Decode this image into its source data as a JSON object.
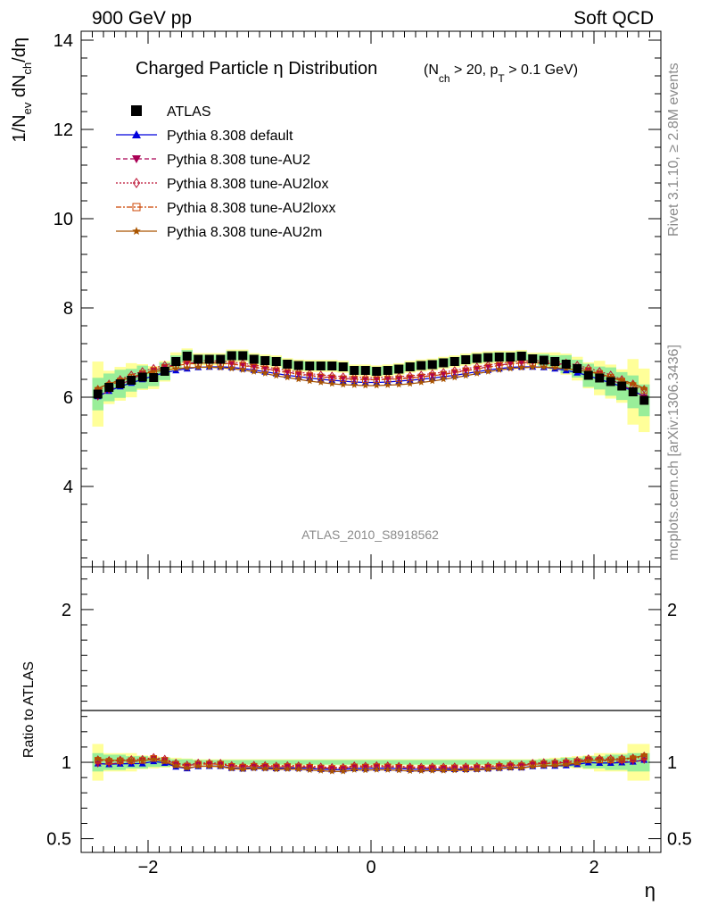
{
  "header": {
    "left": "900 GeV pp",
    "right": "Soft QCD"
  },
  "side_text": {
    "top": "Rivet 3.1.10, ≥ 2.8M events",
    "bottom": "mcplots.cern.ch [arXiv:1306.3436]"
  },
  "title": {
    "main": "Charged Particle η Distribution",
    "sub": "(N_ch > 20, p_T > 0.1 GeV)"
  },
  "watermark": "ATLAS_2010_S8918562",
  "chart_data": {
    "type": "scatter",
    "title": "Charged Particle η Distribution",
    "xlabel": "η",
    "upper": {
      "ylabel": "1/N_ev dN_ch/dη",
      "ylim": [
        2.2,
        14.2
      ],
      "yticks": [
        "4",
        "6",
        "8",
        "10",
        "12",
        "14"
      ]
    },
    "ratio": {
      "ylabel": "Ratio to ATLAS",
      "ylim": [
        0.41,
        2.28
      ],
      "yticks": [
        "0.5",
        "1",
        "2"
      ]
    },
    "xlim": [
      -2.6,
      2.6
    ],
    "xticks": [
      "−2",
      "0",
      "2"
    ],
    "x": [
      -2.45,
      -2.35,
      -2.25,
      -2.15,
      -2.05,
      -1.95,
      -1.85,
      -1.75,
      -1.65,
      -1.55,
      -1.45,
      -1.35,
      -1.25,
      -1.15,
      -1.05,
      -0.95,
      -0.85,
      -0.75,
      -0.65,
      -0.55,
      -0.45,
      -0.35,
      -0.25,
      -0.15,
      -0.05,
      0.05,
      0.15,
      0.25,
      0.35,
      0.45,
      0.55,
      0.65,
      0.75,
      0.85,
      0.95,
      1.05,
      1.15,
      1.25,
      1.35,
      1.45,
      1.55,
      1.65,
      1.75,
      1.85,
      1.95,
      2.05,
      2.15,
      2.25,
      2.35,
      2.45
    ],
    "data": {
      "name": "ATLAS",
      "values": [
        6.07,
        6.22,
        6.3,
        6.38,
        6.45,
        6.44,
        6.58,
        6.8,
        6.92,
        6.85,
        6.85,
        6.85,
        6.93,
        6.93,
        6.85,
        6.82,
        6.8,
        6.74,
        6.71,
        6.7,
        6.7,
        6.7,
        6.68,
        6.6,
        6.6,
        6.58,
        6.6,
        6.63,
        6.68,
        6.71,
        6.73,
        6.77,
        6.8,
        6.84,
        6.87,
        6.89,
        6.9,
        6.9,
        6.92,
        6.86,
        6.83,
        6.8,
        6.74,
        6.64,
        6.49,
        6.43,
        6.35,
        6.25,
        6.12,
        5.93
      ],
      "band_inner": [
        0.06,
        0.05,
        0.05,
        0.04,
        0.04,
        0.03,
        0.03,
        0.02,
        0.02,
        0.015,
        0.015,
        0.015,
        0.015,
        0.015,
        0.015,
        0.015,
        0.015,
        0.015,
        0.015,
        0.015,
        0.015,
        0.015,
        0.015,
        0.015,
        0.015,
        0.015,
        0.015,
        0.015,
        0.015,
        0.015,
        0.015,
        0.015,
        0.015,
        0.015,
        0.015,
        0.015,
        0.015,
        0.015,
        0.015,
        0.015,
        0.02,
        0.02,
        0.03,
        0.03,
        0.04,
        0.04,
        0.05,
        0.05,
        0.06,
        0.06
      ],
      "band_outer": [
        0.12,
        0.06,
        0.06,
        0.06,
        0.045,
        0.04,
        0.035,
        0.03,
        0.025,
        0.02,
        0.02,
        0.02,
        0.02,
        0.02,
        0.02,
        0.02,
        0.02,
        0.02,
        0.02,
        0.02,
        0.02,
        0.02,
        0.02,
        0.02,
        0.02,
        0.02,
        0.02,
        0.02,
        0.02,
        0.02,
        0.02,
        0.02,
        0.02,
        0.02,
        0.02,
        0.02,
        0.02,
        0.02,
        0.02,
        0.02,
        0.025,
        0.03,
        0.035,
        0.04,
        0.045,
        0.06,
        0.06,
        0.06,
        0.12,
        0.12
      ]
    },
    "series": [
      {
        "name": "Pythia 8.308 default",
        "color": "#0000dd",
        "marker": "triangle-up",
        "dash": "solid",
        "values": [
          6.02,
          6.14,
          6.24,
          6.32,
          6.4,
          6.48,
          6.55,
          6.6,
          6.64,
          6.67,
          6.68,
          6.68,
          6.67,
          6.64,
          6.61,
          6.57,
          6.53,
          6.49,
          6.46,
          6.43,
          6.4,
          6.38,
          6.36,
          6.34,
          6.33,
          6.33,
          6.34,
          6.36,
          6.38,
          6.4,
          6.43,
          6.46,
          6.49,
          6.53,
          6.57,
          6.61,
          6.64,
          6.67,
          6.68,
          6.68,
          6.67,
          6.64,
          6.6,
          6.55,
          6.48,
          6.4,
          6.32,
          6.24,
          6.14,
          6.02
        ]
      },
      {
        "name": "Pythia 8.308 tune-AU2",
        "color": "#aa0055",
        "marker": "triangle-down",
        "dash": "dashed",
        "values": [
          6.0,
          6.15,
          6.28,
          6.4,
          6.52,
          6.6,
          6.68,
          6.73,
          6.76,
          6.78,
          6.78,
          6.77,
          6.75,
          6.72,
          6.68,
          6.64,
          6.6,
          6.56,
          6.52,
          6.49,
          6.46,
          6.44,
          6.42,
          6.41,
          6.4,
          6.4,
          6.41,
          6.42,
          6.44,
          6.46,
          6.49,
          6.52,
          6.56,
          6.6,
          6.64,
          6.68,
          6.72,
          6.75,
          6.77,
          6.78,
          6.78,
          6.76,
          6.73,
          6.68,
          6.6,
          6.52,
          6.4,
          6.28,
          6.15,
          6.0
        ]
      },
      {
        "name": "Pythia 8.308 tune-AU2lox",
        "color": "#bb1133",
        "marker": "diamond-open",
        "dash": "dotted",
        "values": [
          6.18,
          6.3,
          6.4,
          6.5,
          6.58,
          6.65,
          6.72,
          6.77,
          6.8,
          6.82,
          6.82,
          6.81,
          6.79,
          6.76,
          6.72,
          6.68,
          6.64,
          6.6,
          6.56,
          6.53,
          6.5,
          6.48,
          6.46,
          6.45,
          6.44,
          6.44,
          6.45,
          6.46,
          6.48,
          6.5,
          6.53,
          6.56,
          6.6,
          6.64,
          6.68,
          6.72,
          6.76,
          6.79,
          6.81,
          6.82,
          6.82,
          6.8,
          6.77,
          6.72,
          6.65,
          6.58,
          6.5,
          6.4,
          6.3,
          6.18
        ]
      },
      {
        "name": "Pythia 8.308 tune-AU2loxx",
        "color": "#cc4400",
        "marker": "square-open",
        "dash": "dashdot",
        "values": [
          6.15,
          6.26,
          6.36,
          6.45,
          6.53,
          6.6,
          6.66,
          6.71,
          6.74,
          6.76,
          6.77,
          6.76,
          6.74,
          6.71,
          6.67,
          6.63,
          6.59,
          6.55,
          6.51,
          6.48,
          6.45,
          6.43,
          6.41,
          6.4,
          6.39,
          6.39,
          6.4,
          6.41,
          6.43,
          6.45,
          6.48,
          6.51,
          6.55,
          6.59,
          6.63,
          6.67,
          6.71,
          6.74,
          6.76,
          6.77,
          6.76,
          6.74,
          6.71,
          6.66,
          6.6,
          6.53,
          6.45,
          6.36,
          6.26,
          6.15
        ]
      },
      {
        "name": "Pythia 8.308 tune-AU2m",
        "color": "#aa5500",
        "marker": "star",
        "dash": "solid",
        "values": [
          6.2,
          6.3,
          6.38,
          6.45,
          6.52,
          6.57,
          6.61,
          6.64,
          6.66,
          6.67,
          6.67,
          6.66,
          6.64,
          6.61,
          6.57,
          6.53,
          6.48,
          6.44,
          6.4,
          6.36,
          6.33,
          6.3,
          6.28,
          6.27,
          6.26,
          6.26,
          6.27,
          6.28,
          6.3,
          6.33,
          6.36,
          6.4,
          6.44,
          6.48,
          6.53,
          6.57,
          6.61,
          6.64,
          6.66,
          6.67,
          6.67,
          6.66,
          6.64,
          6.61,
          6.57,
          6.52,
          6.45,
          6.38,
          6.3,
          6.2
        ]
      }
    ]
  }
}
